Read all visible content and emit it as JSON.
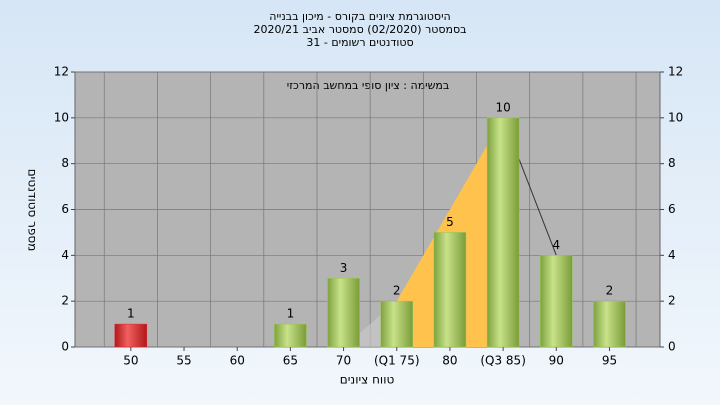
{
  "chart_data": {
    "type": "bar",
    "title": [
      "היסטוגרמת ציונים בקורס - מיכון בבנייה",
      "בסמסטר  (02/2020)  סמסטר אביב 2020/21",
      "סטודנטים רשומים - 31"
    ],
    "annotation": "במשימה : ציון סופי במחשב המרכזי",
    "x_label": "טווח ציונים",
    "y_label": "מספר סטודנטים",
    "categories": [
      "50",
      "55",
      "60",
      "65",
      "70",
      "(Q1 75)",
      "80",
      "(Q3 85)",
      "90",
      "95"
    ],
    "values": [
      1,
      0,
      0,
      1,
      3,
      2,
      5,
      10,
      4,
      2
    ],
    "colors": [
      "#e02828",
      "#9cc45a",
      "#9cc45a",
      "#9cc45a",
      "#9cc45a",
      "#9cc45a",
      "#9cc45a",
      "#9cc45a",
      "#9cc45a",
      "#9cc45a"
    ],
    "ylim": [
      0,
      12
    ],
    "yticks": [
      0,
      2,
      4,
      6,
      8,
      10,
      12
    ],
    "y2lim": [
      0,
      12
    ],
    "y2ticks": [
      0,
      2,
      4,
      6,
      8,
      10,
      12
    ],
    "grid": true
  }
}
